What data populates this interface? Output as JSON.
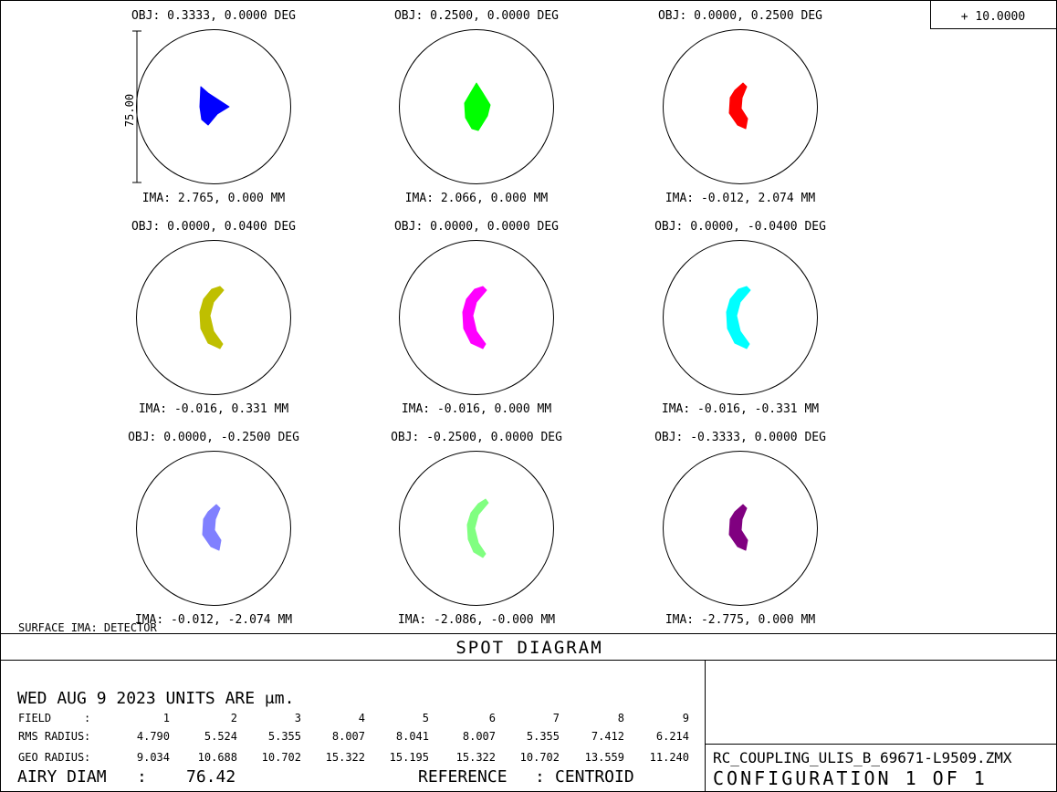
{
  "scale_box": {
    "label": "+ 10.0000"
  },
  "surface_label": "SURFACE IMA: DETECTOR",
  "title": "SPOT DIAGRAM",
  "scale_bar_label": "75.00",
  "footer": {
    "date_line": "WED AUG 9 2023  UNITS ARE μm.",
    "field_label": "FIELD",
    "rms_label": "RMS RADIUS",
    "geo_label": "GEO RADIUS",
    "colon": ":",
    "airy_label": "AIRY DIAM",
    "airy_value": "76.42",
    "reference_label": "REFERENCE",
    "reference_value": "CENTROID",
    "filename": "RC_COUPLING_ULIS_B_69671-L9509.ZMX",
    "configuration": "CONFIGURATION 1 OF 1",
    "field_numbers": [
      "1",
      "2",
      "3",
      "4",
      "5",
      "6",
      "7",
      "8",
      "9"
    ],
    "rms_values": [
      "4.790",
      "5.524",
      "5.355",
      "8.007",
      "8.041",
      "8.007",
      "5.355",
      "7.412",
      "6.214"
    ],
    "geo_values": [
      "9.034",
      "10.688",
      "10.702",
      "15.322",
      "15.195",
      "15.322",
      "10.702",
      "13.559",
      "11.240"
    ]
  },
  "chart_data": {
    "type": "scatter",
    "title": "SPOT DIAGRAM",
    "units": "μm",
    "scale_bar_um": 75.0,
    "airy_diameter_um": 76.42,
    "fields": [
      {
        "obj": "OBJ: 0.3333, 0.0000 DEG",
        "ima": "IMA: 2.765, 0.000 MM",
        "color": "#0000ff",
        "shape": "wedge",
        "rms_um": 4.79,
        "geo_um": 9.034
      },
      {
        "obj": "OBJ: 0.2500, 0.0000 DEG",
        "ima": "IMA: 2.066, 0.000 MM",
        "color": "#00ff00",
        "shape": "lens",
        "rms_um": 5.524,
        "geo_um": 10.688
      },
      {
        "obj": "OBJ: 0.0000, 0.2500 DEG",
        "ima": "IMA: -0.012, 2.074 MM",
        "color": "#ff0000",
        "shape": "crescent",
        "rms_um": 5.355,
        "geo_um": 10.702
      },
      {
        "obj": "OBJ: 0.0000, 0.0400 DEG",
        "ima": "IMA: -0.016, 0.331 MM",
        "color": "#bfbf00",
        "shape": "arc",
        "rms_um": 8.007,
        "geo_um": 15.322
      },
      {
        "obj": "OBJ: 0.0000, 0.0000 DEG",
        "ima": "IMA: -0.016, 0.000 MM",
        "color": "#ff00ff",
        "shape": "arc",
        "rms_um": 8.041,
        "geo_um": 15.195
      },
      {
        "obj": "OBJ: 0.0000, -0.0400 DEG",
        "ima": "IMA: -0.016, -0.331 MM",
        "color": "#00ffff",
        "shape": "arc",
        "rms_um": 8.007,
        "geo_um": 15.322
      },
      {
        "obj": "OBJ: 0.0000, -0.2500 DEG",
        "ima": "IMA: -0.012, -2.074 MM",
        "color": "#8080ff",
        "shape": "crescent",
        "rms_um": 5.355,
        "geo_um": 10.702
      },
      {
        "obj": "OBJ: -0.2500, 0.0000 DEG",
        "ima": "IMA: -2.086, -0.000 MM",
        "color": "#80ff80",
        "shape": "thinarc",
        "rms_um": 7.412,
        "geo_um": 13.559
      },
      {
        "obj": "OBJ: -0.3333, 0.0000 DEG",
        "ima": "IMA: -2.775, 0.000 MM",
        "color": "#800080",
        "shape": "crescent",
        "rms_um": 6.214,
        "geo_um": 11.24
      }
    ]
  }
}
